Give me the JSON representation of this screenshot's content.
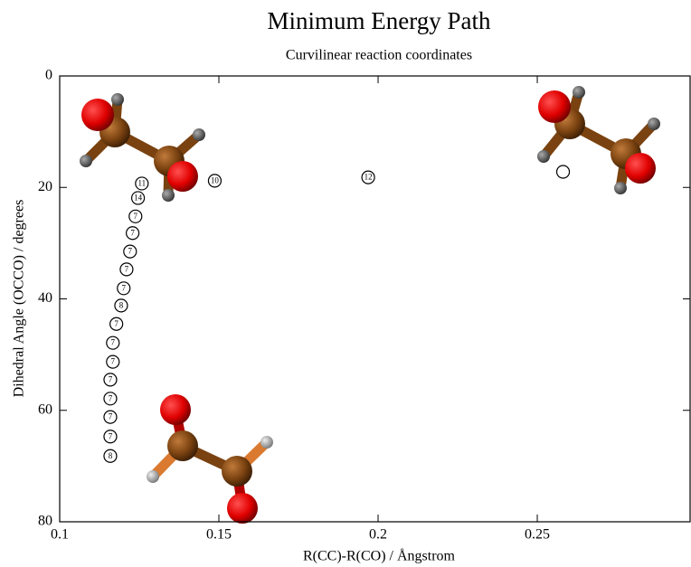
{
  "chart_data": {
    "type": "scatter",
    "title": "Minimum Energy Path",
    "subtitle": "Curvilinear reaction coordinates",
    "x_label": "R(CC)-R(CO) / Ångstrom",
    "y_label": "Dihedral Angle (OCCO) / degrees",
    "xlim": [
      0.1,
      0.298
    ],
    "ylim": [
      0,
      80
    ],
    "y_inverted": true,
    "xticks": [
      0.1,
      0.15,
      0.2,
      0.25
    ],
    "yticks": [
      0,
      20,
      40,
      60,
      80
    ],
    "color": "#000000",
    "x": [
      0.1258,
      0.1246,
      0.1238,
      0.1229,
      0.1221,
      0.121,
      0.1201,
      0.1193,
      0.1178,
      0.1167,
      0.1167,
      0.1159,
      0.1159,
      0.1159,
      0.1159,
      0.1159,
      0.1487,
      0.1969,
      0.2581
    ],
    "values": [
      19.3,
      21.9,
      25.2,
      28.2,
      31.5,
      34.7,
      38.1,
      41.2,
      44.5,
      47.9,
      51.3,
      54.5,
      57.9,
      61.2,
      64.7,
      68.2,
      18.8,
      18.2,
      17.2
    ],
    "point_labels": [
      "11",
      "14",
      "7",
      "7",
      "7",
      "7",
      "7",
      "8",
      "7",
      "7",
      "7",
      "7",
      "7",
      "7",
      "7",
      "8",
      "10",
      "12",
      null
    ]
  }
}
